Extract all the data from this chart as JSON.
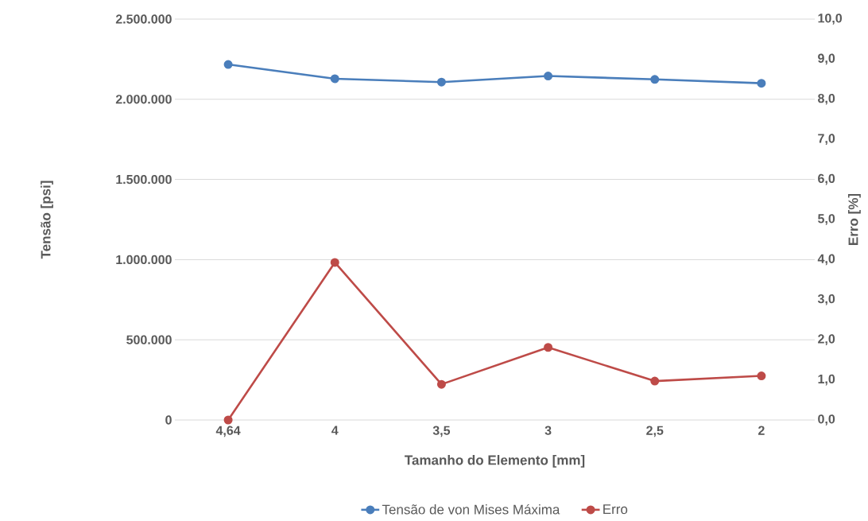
{
  "chart_data": {
    "type": "line",
    "xlabel": "Tamanho do Elemento [mm]",
    "ylabel": "Tensão [psi]",
    "y2label": "Erro [%]",
    "categories": [
      "4,64",
      "4",
      "3,5",
      "3",
      "2,5",
      "2"
    ],
    "series": [
      {
        "name": "Tensão de von Mises Máxima",
        "color": "#4a7ebb",
        "values": [
          2217000,
          2128000,
          2107000,
          2145000,
          2124000,
          2100000
        ]
      },
      {
        "name": "Erro",
        "color": "#be4b48",
        "axis": "y2",
        "values": [
          0,
          3.93,
          0.89,
          1.81,
          0.97,
          1.1
        ]
      }
    ],
    "ylim": [
      0,
      2500000
    ],
    "yticks": [
      {
        "value": 0,
        "label": "0"
      },
      {
        "value": 500000,
        "label": "500.000"
      },
      {
        "value": 1000000,
        "label": "1.000.000"
      },
      {
        "value": 1500000,
        "label": "1.500.000"
      },
      {
        "value": 2000000,
        "label": "2.000.000"
      },
      {
        "value": 2500000,
        "label": "2.500.000"
      }
    ],
    "y2lim": [
      0,
      10
    ],
    "y2ticks": [
      {
        "value": 0,
        "label": "0,0"
      },
      {
        "value": 1,
        "label": "1,0"
      },
      {
        "value": 2,
        "label": "2,0"
      },
      {
        "value": 3,
        "label": "3,0"
      },
      {
        "value": 4,
        "label": "4,0"
      },
      {
        "value": 5,
        "label": "5,0"
      },
      {
        "value": 6,
        "label": "6,0"
      },
      {
        "value": 7,
        "label": "7,0"
      },
      {
        "value": 8,
        "label": "8,0"
      },
      {
        "value": 9,
        "label": "9,0"
      },
      {
        "value": 10,
        "label": "10,0"
      }
    ],
    "grid": "y",
    "legend": "bottom",
    "marker": "circle",
    "line_style": "solid"
  }
}
